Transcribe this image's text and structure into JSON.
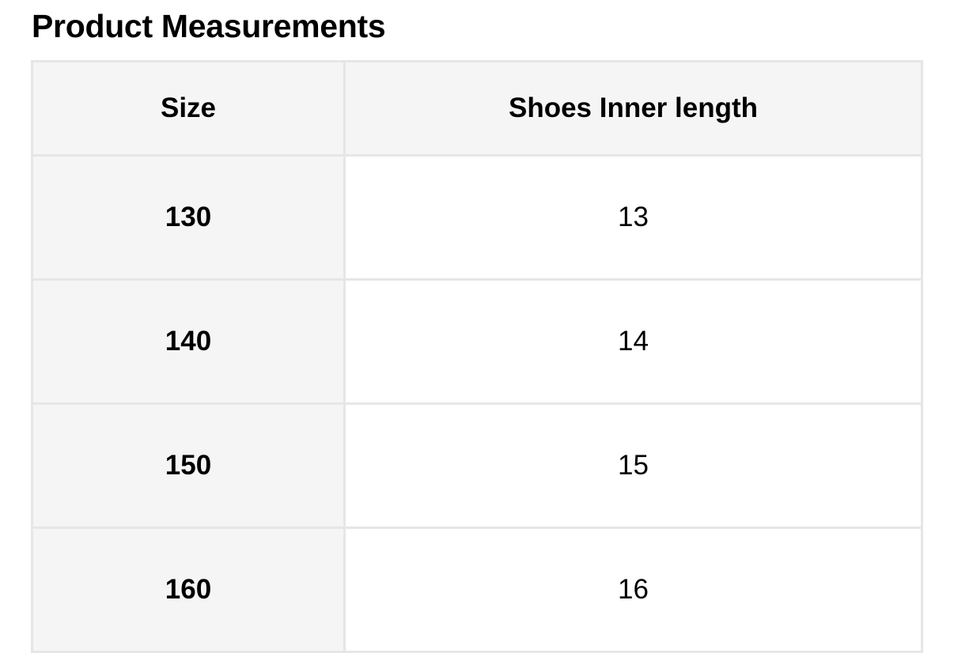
{
  "title": "Product Measurements",
  "table": {
    "headers": [
      "Size",
      "Shoes Inner length"
    ],
    "rows": [
      {
        "size": "130",
        "inner_length": "13"
      },
      {
        "size": "140",
        "inner_length": "14"
      },
      {
        "size": "150",
        "inner_length": "15"
      },
      {
        "size": "160",
        "inner_length": "16"
      }
    ]
  }
}
